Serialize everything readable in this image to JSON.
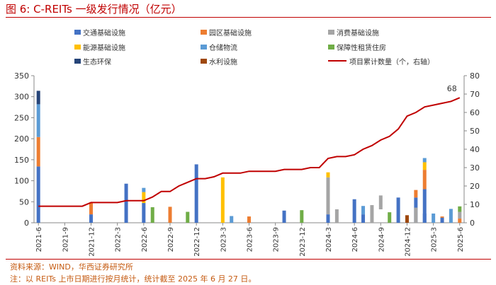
{
  "figure": {
    "title": "图 6:  C-REITs 一级发行情况（亿元）",
    "source": "资料来源：WIND，华西证券研究所",
    "note": "注：以 REITs 上市日期进行按月统计，统计截至 2025 年 6 月 27 日。"
  },
  "chart_data": {
    "type": "bar",
    "stacked": true,
    "months": [
      "2021-6",
      "2021-7",
      "2021-8",
      "2021-9",
      "2021-10",
      "2021-11",
      "2021-12",
      "2022-1",
      "2022-2",
      "2022-3",
      "2022-4",
      "2022-5",
      "2022-6",
      "2022-7",
      "2022-8",
      "2022-9",
      "2022-10",
      "2022-11",
      "2022-12",
      "2023-1",
      "2023-2",
      "2023-3",
      "2023-4",
      "2023-5",
      "2023-6",
      "2023-7",
      "2023-8",
      "2023-9",
      "2023-10",
      "2023-11",
      "2023-12",
      "2024-1",
      "2024-2",
      "2024-3",
      "2024-4",
      "2024-5",
      "2024-6",
      "2024-7",
      "2024-8",
      "2024-9",
      "2024-10",
      "2024-11",
      "2024-12",
      "2025-1",
      "2025-2",
      "2025-3",
      "2025-4",
      "2025-5",
      "2025-6"
    ],
    "tick_labels": [
      "2021-6",
      "2021-9",
      "2021-12",
      "2022-3",
      "2022-6",
      "2022-9",
      "2022-12",
      "2023-3",
      "2023-6",
      "2023-9",
      "2023-12",
      "2024-3",
      "2024-6",
      "2024-9",
      "2024-12",
      "2025-3",
      "2025-6"
    ],
    "series": [
      {
        "name": "交通基础设施",
        "color": "#4472c4",
        "values": [
          134,
          0,
          0,
          0,
          0,
          0,
          20,
          0,
          0,
          0,
          93,
          0,
          47,
          0,
          0,
          0,
          0,
          0,
          139,
          0,
          0,
          0,
          0,
          0,
          0,
          0,
          0,
          0,
          29,
          0,
          0,
          0,
          0,
          20,
          0,
          0,
          56,
          20,
          0,
          0,
          0,
          0,
          0,
          60,
          80,
          0,
          0,
          0,
          0
        ]
      },
      {
        "name": "园区基础设施",
        "color": "#ed7d31",
        "values": [
          70,
          0,
          0,
          0,
          0,
          0,
          27,
          0,
          0,
          0,
          0,
          0,
          0,
          0,
          0,
          38,
          0,
          0,
          0,
          0,
          0,
          0,
          0,
          0,
          15,
          0,
          0,
          0,
          0,
          0,
          0,
          0,
          0,
          0,
          0,
          0,
          0,
          0,
          0,
          0,
          0,
          0,
          0,
          18,
          46,
          0,
          15,
          0,
          10
        ]
      },
      {
        "name": "消费基础设施",
        "color": "#a5a5a5",
        "values": [
          0,
          0,
          0,
          0,
          0,
          0,
          0,
          0,
          0,
          0,
          0,
          0,
          0,
          0,
          0,
          0,
          0,
          0,
          0,
          0,
          0,
          0,
          0,
          0,
          0,
          0,
          0,
          0,
          0,
          0,
          0,
          0,
          0,
          88,
          32,
          0,
          0,
          0,
          42,
          0,
          0,
          0,
          0,
          0,
          0,
          0,
          0,
          0,
          16
        ]
      },
      {
        "name": "能源基础设施",
        "color": "#ffc000",
        "values": [
          0,
          0,
          0,
          0,
          0,
          0,
          0,
          0,
          0,
          0,
          0,
          0,
          26,
          0,
          0,
          0,
          0,
          0,
          0,
          0,
          0,
          108,
          0,
          0,
          0,
          0,
          0,
          0,
          0,
          0,
          0,
          0,
          0,
          12,
          0,
          0,
          0,
          0,
          0,
          0,
          0,
          0,
          0,
          0,
          18,
          0,
          0,
          0,
          0
        ]
      },
      {
        "name": "仓储物流",
        "color": "#5b9bd5",
        "values": [
          78,
          0,
          0,
          0,
          0,
          0,
          0,
          0,
          0,
          0,
          0,
          0,
          10,
          0,
          0,
          0,
          0,
          0,
          0,
          0,
          0,
          0,
          16,
          0,
          0,
          0,
          0,
          0,
          0,
          0,
          0,
          0,
          0,
          0,
          0,
          0,
          0,
          20,
          0,
          0,
          0,
          0,
          0,
          0,
          10,
          22,
          0,
          33,
          0
        ]
      },
      {
        "name": "保障性租赁住房",
        "color": "#70ad47",
        "values": [
          0,
          0,
          0,
          0,
          0,
          0,
          0,
          0,
          0,
          0,
          0,
          0,
          0,
          37,
          0,
          0,
          0,
          26,
          0,
          0,
          0,
          0,
          0,
          0,
          0,
          0,
          0,
          0,
          0,
          0,
          30,
          0,
          0,
          0,
          0,
          0,
          0,
          0,
          0,
          0,
          25,
          0,
          0,
          0,
          0,
          0,
          0,
          0,
          13
        ]
      },
      {
        "name": "生态环保",
        "color": "#264478",
        "values": [
          32,
          0,
          0,
          0,
          0,
          0,
          0,
          0,
          0,
          0,
          0,
          0,
          0,
          0,
          0,
          0,
          0,
          0,
          0,
          0,
          0,
          0,
          0,
          0,
          0,
          0,
          0,
          0,
          0,
          0,
          0,
          0,
          0,
          0,
          0,
          0,
          0,
          0,
          0,
          0,
          0,
          0,
          0,
          0,
          0,
          0,
          0,
          0,
          0
        ]
      },
      {
        "name": "水利设施",
        "color": "#9e480e",
        "values": [
          0,
          0,
          0,
          0,
          0,
          0,
          0,
          0,
          0,
          0,
          0,
          0,
          0,
          0,
          0,
          0,
          0,
          0,
          0,
          0,
          0,
          0,
          0,
          0,
          0,
          0,
          0,
          0,
          0,
          0,
          0,
          0,
          0,
          0,
          0,
          0,
          0,
          0,
          0,
          0,
          0,
          0,
          18,
          0,
          0,
          0,
          0,
          0,
          0
        ]
      }
    ],
    "misc_bars": [
      {
        "month": "2024-9",
        "color": "#a5a5a5",
        "bottom": 32,
        "top": 65
      },
      {
        "month": "2024-11",
        "color": "#4472c4",
        "bottom": 0,
        "top": 60
      },
      {
        "month": "2025-1",
        "color": "#a5a5a5",
        "bottom": 0,
        "top": 36
      },
      {
        "month": "2025-2",
        "color": "#4472c4",
        "bottom": 0,
        "top": 22
      },
      {
        "month": "2025-4",
        "color": "#4472c4",
        "bottom": 0,
        "top": 12
      },
      {
        "month": "2025-4",
        "color": "#70ad47",
        "bottom": 12,
        "top": 12
      }
    ],
    "line": {
      "name": "项目累计数量（个，右轴）",
      "color": "#c00000",
      "values": [
        9,
        9,
        9,
        9,
        9,
        9,
        11,
        11,
        11,
        11,
        12,
        12,
        12,
        14,
        17,
        17,
        20,
        22,
        24,
        24,
        25,
        27,
        27,
        27,
        28,
        28,
        28,
        28,
        29,
        29,
        29,
        30,
        30,
        35,
        36,
        36,
        37,
        40,
        42,
        45,
        47,
        51,
        58,
        60,
        63,
        64,
        65,
        66,
        68
      ]
    },
    "annotation": {
      "month": "2025-6",
      "label": "68"
    },
    "y_left": {
      "min": 0,
      "max": 350,
      "ticks": [
        0,
        50,
        100,
        150,
        200,
        250,
        300,
        350
      ]
    },
    "y_right": {
      "min": 0,
      "max": 80,
      "ticks": [
        0,
        10,
        20,
        30,
        40,
        50,
        60,
        70,
        80
      ]
    }
  }
}
